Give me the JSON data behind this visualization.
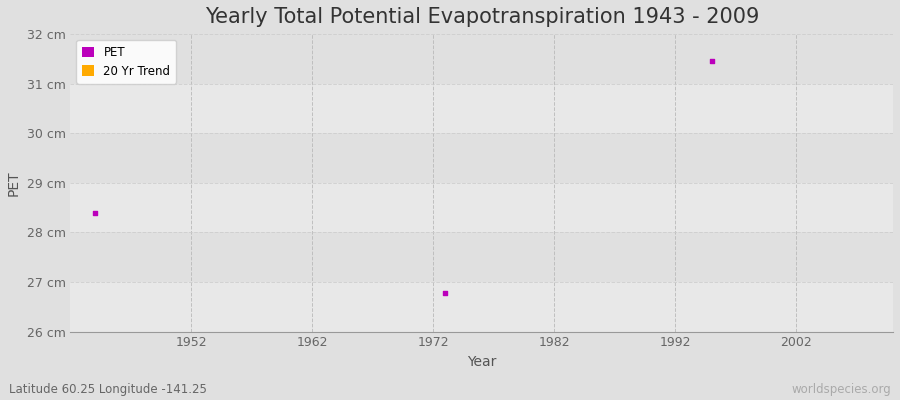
{
  "title": "Yearly Total Potential Evapotranspiration 1943 - 2009",
  "xlabel": "Year",
  "ylabel": "PET",
  "background_color": "#e0e0e0",
  "plot_bg_color": "#ebebeb",
  "grid_color": "#cccccc",
  "xlim": [
    1942,
    2010
  ],
  "ylim": [
    26,
    32
  ],
  "yticks": [
    26,
    27,
    28,
    29,
    30,
    31,
    32
  ],
  "ytick_labels": [
    "26 cm",
    "27 cm",
    "28 cm",
    "29 cm",
    "30 cm",
    "31 cm",
    "32 cm"
  ],
  "xticks": [
    1952,
    1962,
    1972,
    1982,
    1992,
    2002
  ],
  "pet_years": [
    1944,
    1973,
    1995
  ],
  "pet_values": [
    28.4,
    26.78,
    31.45
  ],
  "pet_color": "#bb00bb",
  "trend_color": "#ffaa00",
  "legend_labels": [
    "PET",
    "20 Yr Trend"
  ],
  "subtitle": "Latitude 60.25 Longitude -141.25",
  "watermark": "worldspecies.org",
  "title_fontsize": 15,
  "axis_label_fontsize": 10,
  "tick_fontsize": 9,
  "subtitle_fontsize": 8.5,
  "band_colors": [
    "#e8e8e8",
    "#e0e0e0"
  ]
}
